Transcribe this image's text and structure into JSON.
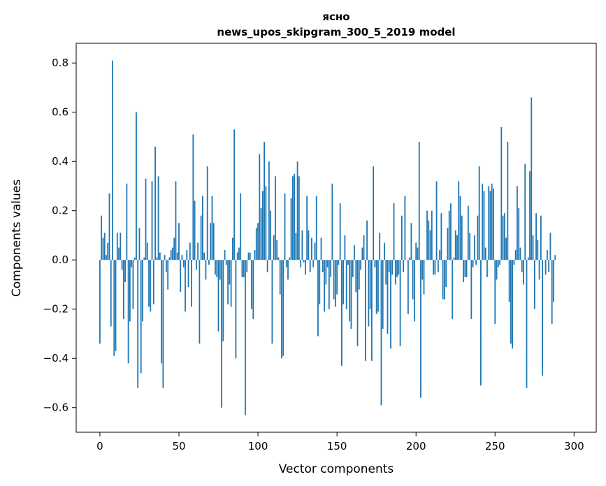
{
  "chart_data": {
    "type": "bar",
    "title_line1": "ясно",
    "title_line2": "news_upos_skipgram_300_5_2019 model",
    "xlabel": "Vector components",
    "ylabel": "Components values",
    "xlim": [
      -15,
      314
    ],
    "ylim": [
      -0.7,
      0.88
    ],
    "x_ticks": [
      0,
      50,
      100,
      150,
      200,
      250,
      300
    ],
    "x_tick_labels": [
      "0",
      "50",
      "100",
      "150",
      "200",
      "250",
      "300"
    ],
    "y_ticks": [
      -0.6,
      -0.4,
      -0.2,
      0.0,
      0.2,
      0.4,
      0.6,
      0.8
    ],
    "y_tick_labels": [
      "−0.6",
      "−0.4",
      "−0.2",
      "0.0",
      "0.2",
      "0.4",
      "0.6",
      "0.8"
    ],
    "bar_color": "#1f77b4",
    "grid": false,
    "values": [
      -0.34,
      0.18,
      0.09,
      0.11,
      0.02,
      0.07,
      0.27,
      -0.27,
      0.81,
      -0.39,
      -0.37,
      0.11,
      0.05,
      0.11,
      -0.04,
      -0.24,
      -0.09,
      0.31,
      -0.42,
      -0.25,
      -0.03,
      -0.2,
      0.01,
      0.6,
      -0.52,
      0.13,
      -0.46,
      -0.25,
      0.01,
      0.33,
      0.07,
      -0.19,
      -0.21,
      0.32,
      -0.18,
      0.46,
      0.01,
      0.34,
      0.03,
      -0.42,
      -0.52,
      0.02,
      -0.05,
      -0.12,
      0.01,
      0.04,
      0.05,
      0.09,
      0.32,
      0.03,
      0.15,
      -0.13,
      0.02,
      -0.03,
      -0.21,
      0.04,
      -0.11,
      0.07,
      -0.19,
      0.51,
      0.24,
      -0.04,
      0.07,
      -0.34,
      0.18,
      0.26,
      0.03,
      -0.08,
      0.38,
      -0.02,
      0.15,
      0.26,
      0.15,
      -0.06,
      -0.07,
      -0.29,
      -0.08,
      -0.6,
      -0.33,
      0.04,
      -0.02,
      -0.18,
      -0.1,
      -0.19,
      0.09,
      0.53,
      -0.4,
      0.03,
      0.05,
      0.27,
      -0.07,
      -0.07,
      -0.63,
      -0.05,
      0.03,
      0.03,
      -0.2,
      -0.24,
      0.04,
      0.13,
      0.15,
      0.43,
      0.21,
      0.28,
      0.48,
      0.3,
      -0.05,
      0.4,
      0.2,
      -0.34,
      0.1,
      0.34,
      0.08,
      0.01,
      -0.14,
      -0.4,
      -0.39,
      0.27,
      -0.03,
      -0.08,
      0.01,
      0.25,
      0.34,
      0.35,
      0.11,
      0.4,
      0.34,
      -0.03,
      0.12,
      -0.01,
      -0.06,
      0.26,
      0.12,
      -0.05,
      0.09,
      -0.03,
      0.07,
      0.26,
      -0.31,
      -0.18,
      0.09,
      -0.05,
      -0.21,
      -0.1,
      -0.03,
      -0.2,
      -0.07,
      0.31,
      -0.16,
      -0.19,
      -0.14,
      -0.02,
      0.23,
      -0.43,
      -0.18,
      0.1,
      -0.2,
      -0.02,
      -0.25,
      -0.28,
      -0.07,
      0.06,
      -0.13,
      -0.35,
      -0.12,
      -0.04,
      0.05,
      0.1,
      -0.41,
      0.16,
      -0.27,
      -0.2,
      -0.41,
      0.38,
      -0.03,
      -0.22,
      -0.21,
      0.11,
      -0.59,
      -0.28,
      0.07,
      -0.1,
      -0.3,
      -0.05,
      -0.36,
      -0.06,
      0.23,
      -0.1,
      -0.07,
      -0.06,
      -0.35,
      0.18,
      -0.05,
      0.26,
      0.0,
      -0.22,
      0.01,
      0.15,
      -0.16,
      -0.25,
      0.07,
      0.05,
      0.48,
      -0.56,
      -0.08,
      -0.14,
      0.0,
      0.2,
      0.16,
      0.12,
      0.2,
      -0.06,
      -0.06,
      0.32,
      -0.05,
      0.04,
      0.19,
      -0.16,
      -0.16,
      -0.11,
      0.13,
      0.2,
      0.23,
      -0.24,
      0.01,
      0.12,
      0.1,
      0.32,
      0.26,
      0.18,
      -0.09,
      -0.07,
      -0.07,
      0.22,
      0.11,
      -0.24,
      -0.03,
      0.1,
      -0.02,
      0.18,
      0.38,
      -0.51,
      0.31,
      0.28,
      0.05,
      -0.07,
      0.3,
      0.28,
      0.31,
      0.29,
      -0.26,
      -0.08,
      -0.03,
      -0.02,
      0.54,
      0.18,
      0.19,
      0.09,
      0.48,
      -0.17,
      -0.34,
      -0.36,
      -0.02,
      0.04,
      0.3,
      0.21,
      0.05,
      -0.05,
      -0.1,
      0.39,
      -0.52,
      0.01,
      0.36,
      0.66,
      0.1,
      -0.2,
      0.19,
      0.08,
      -0.08,
      0.18,
      -0.47,
      0.0,
      -0.06,
      0.04,
      -0.05,
      0.11,
      -0.26,
      -0.17,
      0.02
    ]
  }
}
